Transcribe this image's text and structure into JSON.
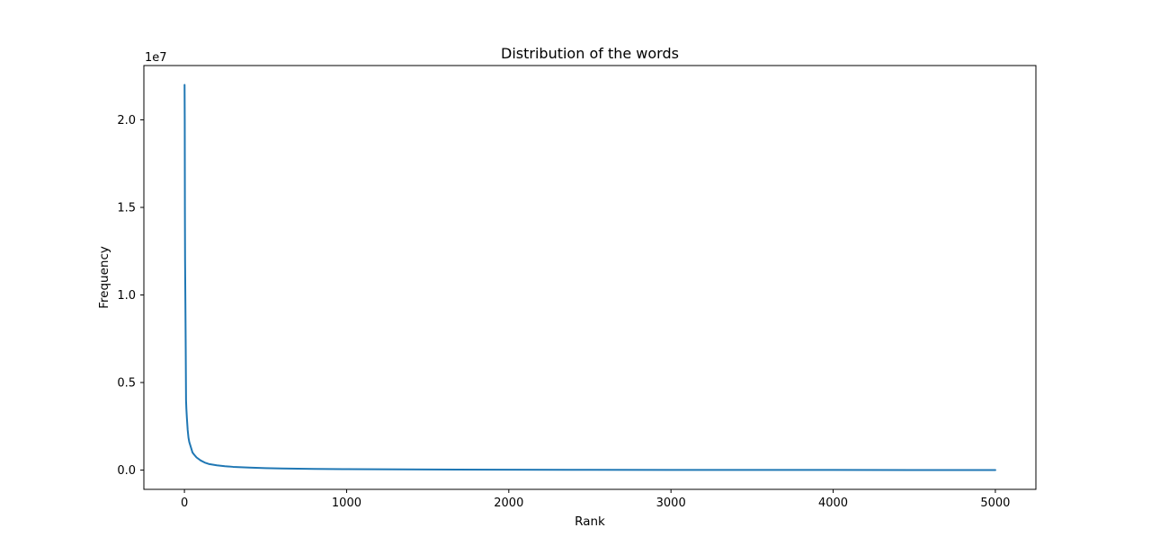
{
  "chart_data": {
    "type": "line",
    "title": "Distribution of the words",
    "xlabel": "Rank",
    "ylabel": "Frequency",
    "y_offset_label": "1e7",
    "xlim": [
      -250,
      5250
    ],
    "ylim": [
      -1100000,
      23100000
    ],
    "xticks": [
      {
        "value": 0,
        "label": "0"
      },
      {
        "value": 1000,
        "label": "1000"
      },
      {
        "value": 2000,
        "label": "2000"
      },
      {
        "value": 3000,
        "label": "3000"
      },
      {
        "value": 4000,
        "label": "4000"
      },
      {
        "value": 5000,
        "label": "5000"
      }
    ],
    "yticks": [
      {
        "value": 0,
        "label": "0.0"
      },
      {
        "value": 5000000,
        "label": "0.5"
      },
      {
        "value": 10000000,
        "label": "1.0"
      },
      {
        "value": 15000000,
        "label": "1.5"
      },
      {
        "value": 20000000,
        "label": "2.0"
      }
    ],
    "grid": false,
    "series": [
      {
        "color": "#1f77b4",
        "x": [
          1,
          2,
          3,
          4,
          5,
          6,
          8,
          10,
          12,
          15,
          20,
          25,
          30,
          40,
          50,
          60,
          75,
          100,
          125,
          150,
          200,
          250,
          300,
          400,
          500,
          600,
          800,
          1000,
          1500,
          2000,
          2500,
          3000,
          3500,
          4000,
          4500,
          5000
        ],
        "y": [
          22000000,
          20000000,
          14800000,
          12000000,
          10800000,
          9600000,
          7000000,
          4000000,
          3500000,
          3000000,
          2300000,
          1850000,
          1600000,
          1300000,
          1000000,
          880000,
          720000,
          550000,
          430000,
          350000,
          270000,
          220000,
          185000,
          140000,
          110000,
          90000,
          68000,
          52000,
          32000,
          22000,
          15000,
          11000,
          8000,
          6000,
          4500,
          3500
        ]
      }
    ]
  }
}
